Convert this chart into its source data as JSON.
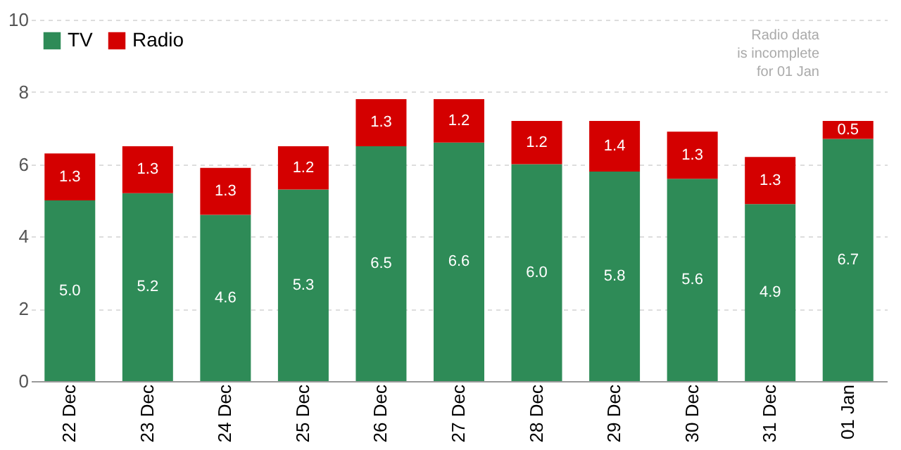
{
  "chart_data": {
    "type": "bar",
    "stacked": true,
    "categories": [
      "22 Dec",
      "23 Dec",
      "24 Dec",
      "25 Dec",
      "26 Dec",
      "27 Dec",
      "28 Dec",
      "29 Dec",
      "30 Dec",
      "31 Dec",
      "01 Jan"
    ],
    "series": [
      {
        "name": "TV",
        "color": "#2e8b57",
        "values": [
          5.0,
          5.2,
          4.6,
          5.3,
          6.5,
          6.6,
          6.0,
          5.8,
          5.6,
          4.9,
          6.7
        ],
        "value_labels": [
          "5.0",
          "5.2",
          "4.6",
          "5.3",
          "6.5",
          "6.6",
          "6.0",
          "5.8",
          "5.6",
          "4.9",
          "6.7"
        ]
      },
      {
        "name": "Radio",
        "color": "#d40000",
        "values": [
          1.3,
          1.3,
          1.3,
          1.2,
          1.3,
          1.2,
          1.2,
          1.4,
          1.3,
          1.3,
          0.5
        ]
      }
    ],
    "ylim": [
      0,
      10
    ],
    "yticks": [
      0,
      2,
      4,
      6,
      8,
      10
    ],
    "grid": "y",
    "legend": "top left",
    "data_labels": true,
    "annotations": [
      "Radio data\nis incomplete\nfor 01 Jan"
    ]
  }
}
